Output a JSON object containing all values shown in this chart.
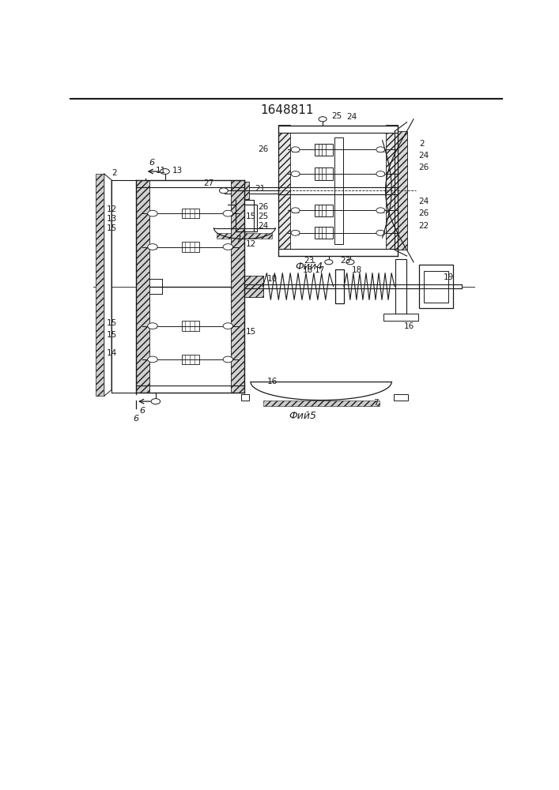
{
  "title": "1648811",
  "bg_color": "#ffffff",
  "line_color": "#1a1a1a",
  "fig4_caption": "Фий4",
  "fig5_caption": "Фий5",
  "caption_fontsize": 9
}
